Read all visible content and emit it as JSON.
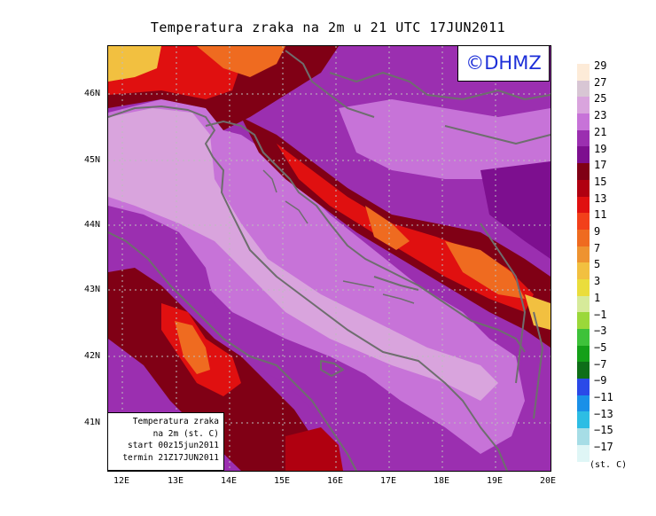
{
  "title": "Temperatura zraka na 2m u 21 UTC 17JUN2011",
  "copyright_badge": "©DHMZ",
  "info_box": {
    "line1": "Temperatura zraka",
    "line2": "na 2m (st. C)",
    "line3": "start 00z15jun2011",
    "line4": "termin 21Z17JUN2011"
  },
  "axes": {
    "lat_labels": [
      "46N",
      "45N",
      "44N",
      "43N",
      "42N",
      "41N"
    ],
    "lon_labels": [
      "12E",
      "13E",
      "14E",
      "15E",
      "16E",
      "17E",
      "18E",
      "19E",
      "20E"
    ]
  },
  "legend": {
    "unit": "(st. C)",
    "labels": [
      "29",
      "27",
      "25",
      "23",
      "21",
      "19",
      "17",
      "15",
      "13",
      "11",
      "9",
      "7",
      "5",
      "3",
      "1",
      "−1",
      "−3",
      "−5",
      "−7",
      "−9",
      "−11",
      "−13",
      "−15",
      "−17"
    ],
    "colors": [
      "#fdebd8",
      "#d8c6d4",
      "#d9a4dd",
      "#c773d8",
      "#9b2fb0",
      "#7d0f8f",
      "#800015",
      "#b00010",
      "#e01010",
      "#f2401a",
      "#ef6b20",
      "#ee9330",
      "#f2c040",
      "#eadd3c",
      "#d6ea9a",
      "#9bd83a",
      "#3ec23a",
      "#14a018",
      "#0e6e18",
      "#2a49e8",
      "#1a90e8",
      "#2dbde4",
      "#a6dde6",
      "#dff6f6"
    ]
  },
  "colors": {
    "sea": "#c773d8",
    "sea_light": "#d9a4dd",
    "land_low": "#9b2fb0",
    "land_mid": "#7d0f8f",
    "mountain_dark": "#800015",
    "mountain_red": "#e01010",
    "mountain_orange": "#ef6b20",
    "peak_yellow": "#f2c040",
    "coastline": "#6e6e6e",
    "grid": "#bdbdbd"
  }
}
